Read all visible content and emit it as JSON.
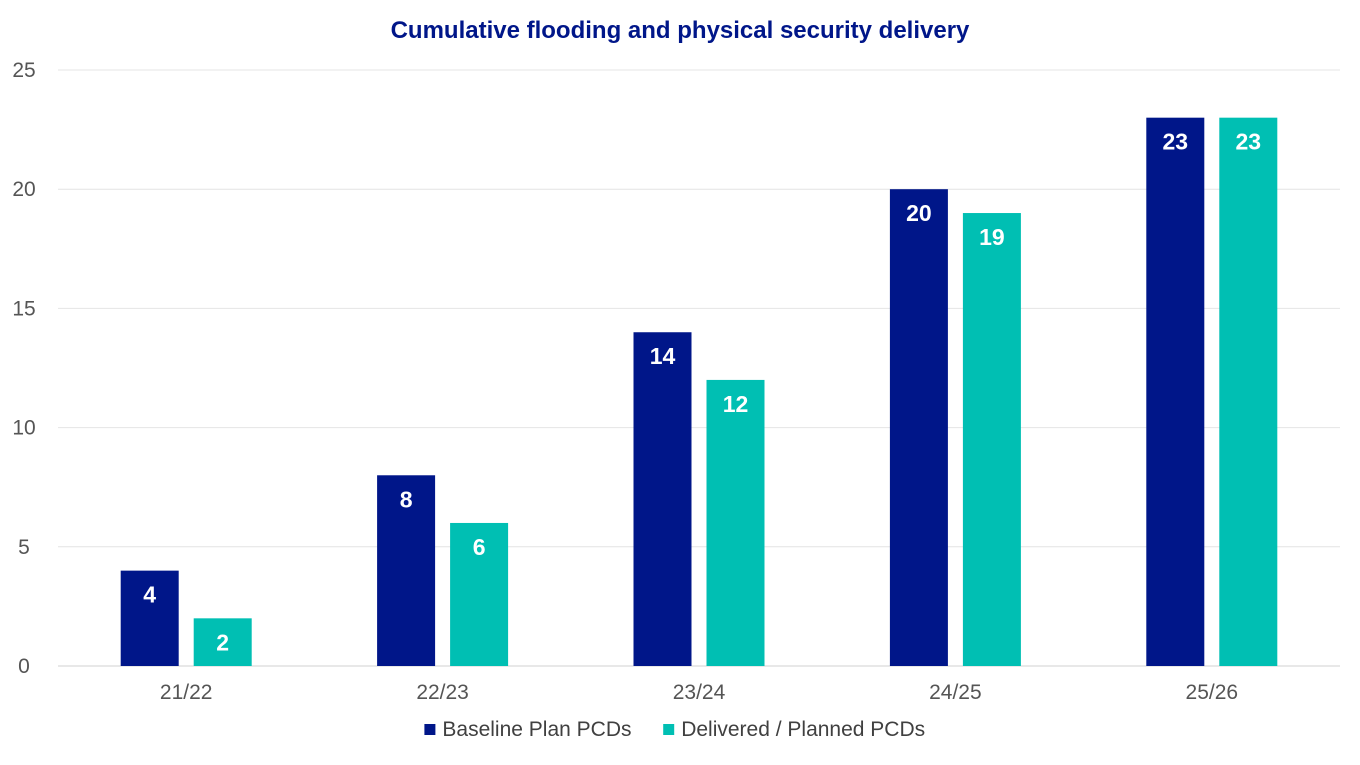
{
  "chart_data": {
    "type": "bar",
    "title": "Cumulative flooding and physical security delivery",
    "xlabel": "",
    "ylabel": "",
    "categories": [
      "21/22",
      "22/23",
      "23/24",
      "24/25",
      "25/26"
    ],
    "series": [
      {
        "name": "Baseline Plan PCDs",
        "values": [
          4,
          8,
          14,
          20,
          23
        ],
        "color": "#001689"
      },
      {
        "name": "Delivered / Planned PCDs",
        "values": [
          2,
          6,
          12,
          19,
          23
        ],
        "color": "#00BFB3"
      }
    ],
    "ylim": [
      0,
      25
    ],
    "yticks": [
      0,
      5,
      10,
      15,
      20,
      25
    ],
    "grid": true,
    "legend": "bottom",
    "data_labels": true,
    "title_color": "#001689"
  }
}
